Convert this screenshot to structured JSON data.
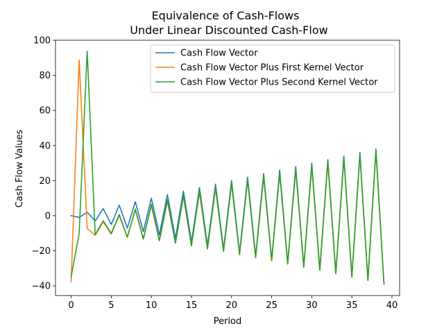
{
  "chart_data": {
    "type": "line",
    "title": "Equivalence of Cash-Flows",
    "subtitle": "Under Linear Discounted Cash-Flow",
    "xlabel": "Period",
    "ylabel": "Cash Flow Values",
    "xlim": [
      -1.95,
      40.95
    ],
    "ylim": [
      -45.5,
      100
    ],
    "xticks": [
      0,
      5,
      10,
      15,
      20,
      25,
      30,
      35,
      40
    ],
    "yticks": [
      -40,
      -20,
      0,
      20,
      40,
      60,
      80,
      100
    ],
    "grid": false,
    "legend_position": "top-right",
    "x": [
      0,
      1,
      2,
      3,
      4,
      5,
      6,
      7,
      8,
      9,
      10,
      11,
      12,
      13,
      14,
      15,
      16,
      17,
      18,
      19,
      20,
      21,
      22,
      23,
      24,
      25,
      26,
      27,
      28,
      29,
      30,
      31,
      32,
      33,
      34,
      35,
      36,
      37,
      38,
      39
    ],
    "series": [
      {
        "name": "Cash Flow Vector",
        "color": "#1f77b4",
        "values": [
          0,
          -1,
          2,
          -3,
          4,
          -5,
          6,
          -7,
          8,
          -9,
          10,
          -11,
          12,
          -13,
          14,
          -15,
          16,
          -17,
          18,
          -19,
          20,
          -21,
          22,
          -23,
          24,
          -25,
          26,
          -27,
          28,
          -29,
          30,
          -31,
          32,
          -33,
          34,
          -35,
          36,
          -37,
          38,
          -39
        ]
      },
      {
        "name": "Cash Flow Vector Plus First Kernel Vector",
        "color": "#ff7f0e",
        "values": [
          -37.7,
          88.8,
          -7.3,
          -11.2,
          -3.5,
          -10.5,
          0.2,
          -12.4,
          3.3,
          -13.4,
          5.8,
          -14.3,
          8.2,
          -15.6,
          10.8,
          -17.1,
          13.4,
          -18.9,
          15.6,
          -20.3,
          17.9,
          -22.1,
          20.0,
          -24.0,
          22.1,
          -25.8,
          23.9,
          -27.7,
          26.2,
          -29.4,
          28.1,
          -31.2,
          30.3,
          -33.0,
          32.4,
          -34.9,
          34.6,
          -36.9,
          36.6,
          -38.9
        ]
      },
      {
        "name": "Cash Flow Vector Plus Second Kernel Vector",
        "color": "#2ca02c",
        "values": [
          -34.8,
          -10.2,
          93.8,
          -10.8,
          -2.9,
          -10.1,
          0.7,
          -12.2,
          3.8,
          -13.2,
          6.5,
          -14.2,
          9.1,
          -15.6,
          11.6,
          -17.2,
          14.2,
          -18.8,
          16.3,
          -20.4,
          18.5,
          -22.2,
          20.4,
          -23.9,
          22.7,
          -25.5,
          24.4,
          -27.4,
          26.7,
          -29.3,
          28.6,
          -31.1,
          30.8,
          -33.1,
          32.9,
          -34.9,
          35.0,
          -36.9,
          37.1,
          -39.0
        ]
      }
    ]
  }
}
